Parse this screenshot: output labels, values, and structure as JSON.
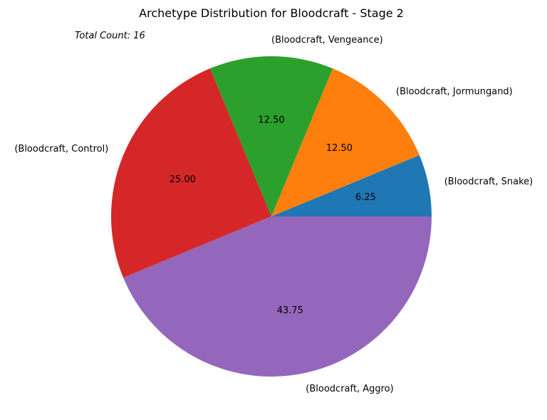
{
  "chart_data": {
    "type": "pie",
    "title": "Archetype Distribution for Bloodcraft - Stage 2",
    "annotation": "Total Count: 16",
    "start_angle_deg": 0,
    "direction": "counterclockwise",
    "slices": [
      {
        "label": "(Bloodcraft, Snake)",
        "value": 6.25,
        "pct_text": "6.25",
        "color": "#1f77b4"
      },
      {
        "label": "(Bloodcraft, Jormungand)",
        "value": 12.5,
        "pct_text": "12.50",
        "color": "#ff7f0e"
      },
      {
        "label": "(Bloodcraft, Vengeance)",
        "value": 12.5,
        "pct_text": "12.50",
        "color": "#2ca02c"
      },
      {
        "label": "(Bloodcraft, Control)",
        "value": 25.0,
        "pct_text": "25.00",
        "color": "#d62728"
      },
      {
        "label": "(Bloodcraft, Aggro)",
        "value": 43.75,
        "pct_text": "43.75",
        "color": "#9467bd"
      }
    ]
  }
}
